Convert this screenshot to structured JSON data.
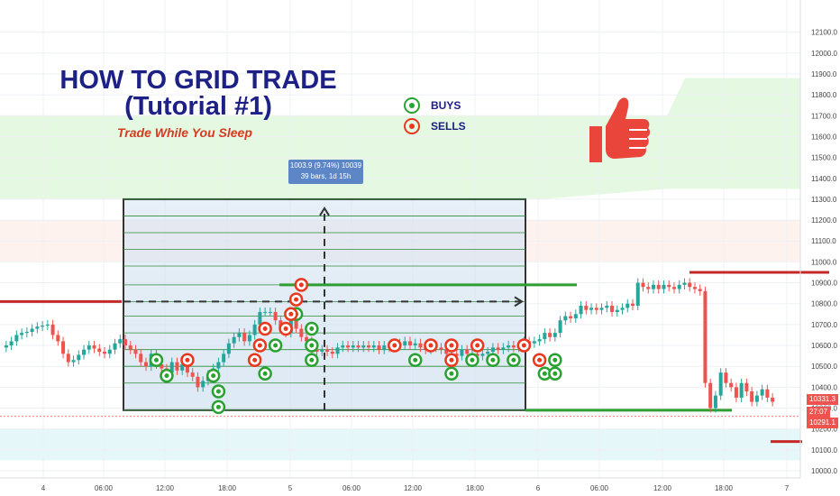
{
  "title_lines": [
    "HOW TO GRID TRADE",
    "(Tutorial #1)"
  ],
  "subtitle": "Trade While You Sleep",
  "legend": {
    "buys_label": "BUYS",
    "sells_label": "SELLS",
    "buy_color": "#2aa232",
    "sell_color": "#e9381e"
  },
  "measure_tooltip": {
    "line1": "1003.9 (9.74%) 10039",
    "line2": "39 bars, 1d 15h"
  },
  "thumb_icon": "thumbs-up-icon",
  "price_tags": [
    {
      "value": "10331.3",
      "color": "#ef5350"
    },
    {
      "value": "27:07",
      "color": "#ef5350"
    },
    {
      "value": "10291.1",
      "color": "#ef5350"
    }
  ],
  "chart_data": {
    "type": "candlestick",
    "title": "HOW TO GRID TRADE (Tutorial #1)",
    "y_axis": {
      "ticks": [
        10000,
        10100,
        10200,
        10300,
        10400,
        10500,
        10600,
        10700,
        10800,
        10900,
        11000,
        11100,
        11200,
        11300,
        11400,
        11500,
        11600,
        11700,
        11800,
        11900,
        12000,
        12100
      ],
      "tick_labels": [
        "10000.0",
        "10100.0",
        "10200.0",
        "10300.0",
        "10400.0",
        "10500.0",
        "10600.0",
        "10700.0",
        "10800.0",
        "10900.0",
        "11000.0",
        "11100.0",
        "11200.0",
        "11300.0",
        "11400.0",
        "11500.0",
        "11600.0",
        "11700.0",
        "11800.0",
        "11900.0",
        "12000.0",
        "12100.0"
      ],
      "range": [
        9970,
        12150
      ],
      "side": "right"
    },
    "x_axis": {
      "tick_labels": [
        "4",
        "06:00",
        "12:00",
        "18:00",
        "5",
        "06:00",
        "12:00",
        "18:00",
        "6",
        "06:00",
        "12:00",
        "18:00",
        "7"
      ]
    },
    "grid": true,
    "colors": {
      "up": "#26a69a",
      "down": "#ef5350"
    },
    "candle_closes": [
      10600,
      10620,
      10650,
      10660,
      10665,
      10680,
      10690,
      10695,
      10700,
      10650,
      10620,
      10560,
      10520,
      10530,
      10555,
      10580,
      10600,
      10585,
      10570,
      10560,
      10580,
      10610,
      10630,
      10600,
      10580,
      10560,
      10520,
      10500,
      10560,
      10510,
      10490,
      10470,
      10520,
      10480,
      10510,
      10470,
      10450,
      10400,
      10430,
      10460,
      10490,
      10520,
      10560,
      10610,
      10640,
      10660,
      10620,
      10650,
      10700,
      10760,
      10760,
      10760,
      10720,
      10680,
      10660,
      10720,
      10680,
      10640,
      10620,
      10580,
      10570,
      10580,
      10570,
      10560,
      10590,
      10600,
      10590,
      10600,
      10590,
      10600,
      10590,
      10600,
      10580,
      10600,
      10590,
      10610,
      10600,
      10620,
      10600,
      10610,
      10590,
      10580,
      10600,
      10590,
      10580,
      10560,
      10560,
      10550,
      10580,
      10560,
      10560,
      10550,
      10560,
      10570,
      10590,
      10580,
      10590,
      10600,
      10590,
      10600,
      10620,
      10610,
      10620,
      10630,
      10660,
      10640,
      10660,
      10720,
      10740,
      10730,
      10750,
      10790,
      10770,
      10780,
      10770,
      10780,
      10790,
      10760,
      10770,
      10780,
      10800,
      10790,
      10900,
      10880,
      10870,
      10890,
      10870,
      10890,
      10880,
      10870,
      10890,
      10900,
      10880,
      10870,
      10860,
      10420,
      10300,
      10360,
      10470,
      10420,
      10400,
      10350,
      10420,
      10380,
      10330,
      10360,
      10390,
      10350,
      10330
    ],
    "grid_box": {
      "top_price": 11300,
      "bottom_price": 10290
    },
    "grid_levels": [
      11300,
      11220,
      11140,
      11060,
      10980,
      10890,
      10810,
      10740,
      10660,
      10580,
      10500,
      10420,
      10290
    ],
    "measure": {
      "change": 1003.9,
      "percent": "9.74%",
      "bars": 39,
      "duration": "1d 15h"
    },
    "buys": [
      {
        "bar": 29,
        "price": 10530
      },
      {
        "bar": 31,
        "price": 10455
      },
      {
        "bar": 40,
        "price": 10455
      },
      {
        "bar": 41,
        "price": 10380
      },
      {
        "bar": 41,
        "price": 10305
      },
      {
        "bar": 50,
        "price": 10465
      },
      {
        "bar": 52,
        "price": 10600
      },
      {
        "bar": 56,
        "price": 10750
      },
      {
        "bar": 59,
        "price": 10680
      },
      {
        "bar": 59,
        "price": 10600
      },
      {
        "bar": 59,
        "price": 10530
      },
      {
        "bar": 79,
        "price": 10530
      },
      {
        "bar": 86,
        "price": 10465
      },
      {
        "bar": 90,
        "price": 10530
      },
      {
        "bar": 94,
        "price": 10530
      },
      {
        "bar": 98,
        "price": 10530
      },
      {
        "bar": 104,
        "price": 10465
      },
      {
        "bar": 106,
        "price": 10465
      },
      {
        "bar": 106,
        "price": 10530
      }
    ],
    "sells": [
      {
        "bar": 35,
        "price": 10530
      },
      {
        "bar": 48,
        "price": 10530
      },
      {
        "bar": 49,
        "price": 10600
      },
      {
        "bar": 50,
        "price": 10680
      },
      {
        "bar": 54,
        "price": 10680
      },
      {
        "bar": 55,
        "price": 10750
      },
      {
        "bar": 56,
        "price": 10820
      },
      {
        "bar": 57,
        "price": 10890
      },
      {
        "bar": 75,
        "price": 10600
      },
      {
        "bar": 82,
        "price": 10600
      },
      {
        "bar": 86,
        "price": 10600
      },
      {
        "bar": 86,
        "price": 10530
      },
      {
        "bar": 91,
        "price": 10600
      },
      {
        "bar": 100,
        "price": 10600
      },
      {
        "bar": 103,
        "price": 10530
      }
    ]
  }
}
